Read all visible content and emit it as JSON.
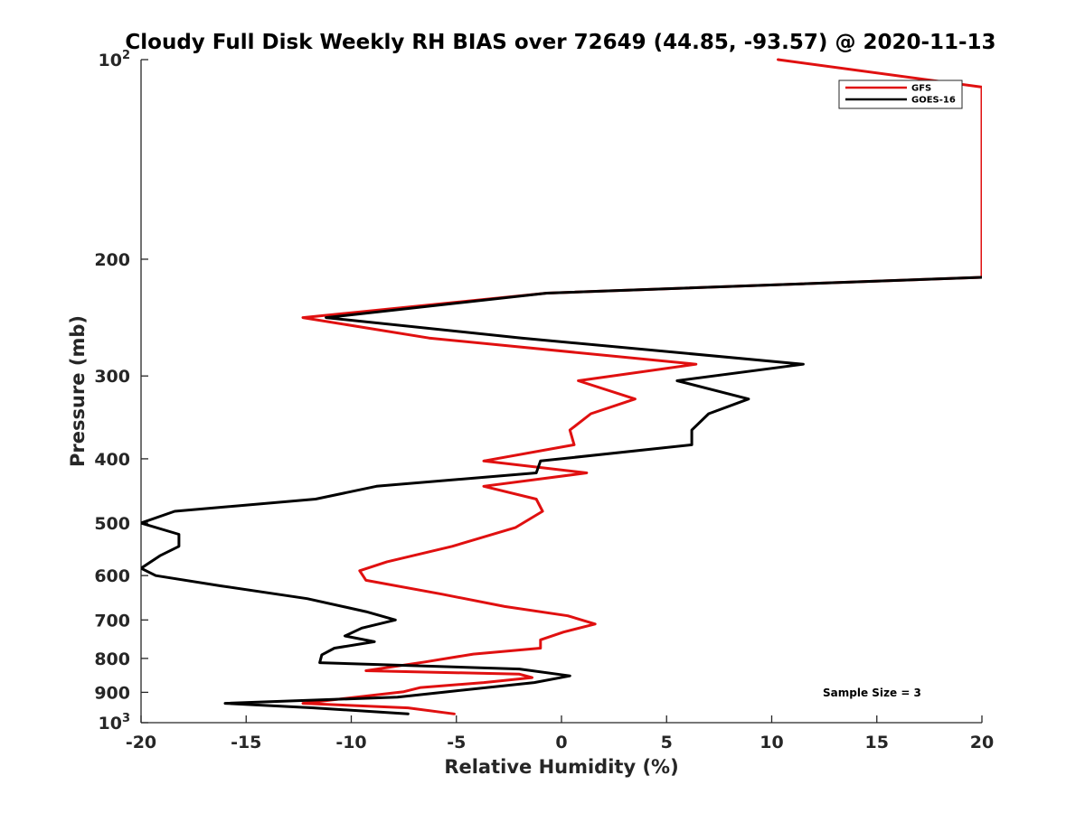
{
  "chart_data": {
    "type": "line",
    "title": "Cloudy Full Disk Weekly RH BIAS over 72649 (44.85, -93.57) @ 2020-11-13",
    "xlabel": "Relative Humidity (%)",
    "ylabel": "Pressure (mb)",
    "xlim": [
      -20,
      20
    ],
    "ylim": [
      100,
      1000
    ],
    "yscale": "log",
    "y_reversed": true,
    "xticks": [
      "-20",
      "-15",
      "-10",
      "-5",
      "0",
      "5",
      "10",
      "15",
      "20"
    ],
    "yticks": [
      {
        "value": 100,
        "base": "10",
        "exp": "2"
      },
      {
        "value": 200,
        "label": "200"
      },
      {
        "value": 300,
        "label": "300"
      },
      {
        "value": 400,
        "label": "400"
      },
      {
        "value": 500,
        "label": "500"
      },
      {
        "value": 600,
        "label": "600"
      },
      {
        "value": 700,
        "label": "700"
      },
      {
        "value": 800,
        "label": "800"
      },
      {
        "value": 900,
        "label": "900"
      },
      {
        "value": 1000,
        "base": "10",
        "exp": "3"
      }
    ],
    "legend_position": "top-right",
    "grid": false,
    "annotation": "Sample Size = 3",
    "series": [
      {
        "name": "GFS",
        "color": "#e01010",
        "points": [
          [
            10.3,
            100
          ],
          [
            20,
            110
          ],
          [
            20,
            213
          ],
          [
            -0.7,
            225
          ],
          [
            -12.3,
            245
          ],
          [
            -6.3,
            263
          ],
          [
            6.4,
            288
          ],
          [
            0.8,
            305
          ],
          [
            3.5,
            325
          ],
          [
            1.4,
            342
          ],
          [
            0.4,
            362
          ],
          [
            0.6,
            381
          ],
          [
            -3.7,
            403
          ],
          [
            1.2,
            420
          ],
          [
            -3.7,
            440
          ],
          [
            -1.2,
            460
          ],
          [
            -0.9,
            480
          ],
          [
            -2.2,
            508
          ],
          [
            -5.2,
            542
          ],
          [
            -8.3,
            572
          ],
          [
            -9.6,
            590
          ],
          [
            -9.3,
            610
          ],
          [
            -5.7,
            640
          ],
          [
            -2.7,
            668
          ],
          [
            0.3,
            690
          ],
          [
            1.6,
            710
          ],
          [
            0.1,
            730
          ],
          [
            -1.0,
            750
          ],
          [
            -1.0,
            772
          ],
          [
            -4.2,
            788
          ],
          [
            -6.5,
            810
          ],
          [
            -9.3,
            835
          ],
          [
            -2.0,
            845
          ],
          [
            -1.4,
            855
          ],
          [
            -3.7,
            870
          ],
          [
            -6.7,
            885
          ],
          [
            -7.5,
            898
          ],
          [
            -12.3,
            935
          ],
          [
            -7.3,
            950
          ],
          [
            -5.1,
            970
          ]
        ]
      },
      {
        "name": "GOES-16",
        "color": "#000000",
        "points": [
          [
            20,
            213
          ],
          [
            -0.7,
            225
          ],
          [
            -11.2,
            245
          ],
          [
            -1.9,
            263
          ],
          [
            11.5,
            288
          ],
          [
            5.5,
            305
          ],
          [
            8.9,
            325
          ],
          [
            7.0,
            342
          ],
          [
            6.2,
            362
          ],
          [
            6.2,
            381
          ],
          [
            -1.0,
            403
          ],
          [
            -1.2,
            420
          ],
          [
            -8.8,
            440
          ],
          [
            -11.7,
            460
          ],
          [
            -18.4,
            480
          ],
          [
            -20,
            500
          ],
          [
            -18.2,
            520
          ],
          [
            -18.2,
            542
          ],
          [
            -19.1,
            560
          ],
          [
            -20,
            585
          ],
          [
            -19.3,
            600
          ],
          [
            -16.2,
            622
          ],
          [
            -12.1,
            650
          ],
          [
            -9.3,
            680
          ],
          [
            -7.9,
            700
          ],
          [
            -9.5,
            720
          ],
          [
            -10.3,
            740
          ],
          [
            -8.9,
            755
          ],
          [
            -10.8,
            772
          ],
          [
            -11.4,
            790
          ],
          [
            -11.5,
            812
          ],
          [
            -2.0,
            830
          ],
          [
            0.4,
            850
          ],
          [
            -1.3,
            870
          ],
          [
            -5.4,
            898
          ],
          [
            -7.8,
            915
          ],
          [
            -16.0,
            935
          ],
          [
            -11.8,
            950
          ],
          [
            -7.3,
            970
          ]
        ]
      }
    ]
  }
}
